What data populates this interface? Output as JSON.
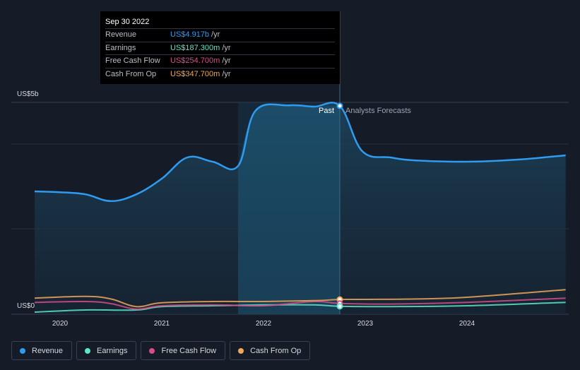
{
  "chart_data": {
    "type": "area",
    "y_axis": {
      "max_label": "US$5b",
      "min_label": "US$0",
      "ylim": [
        0,
        5
      ]
    },
    "x_ticks": [
      "2020",
      "2021",
      "2022",
      "2023",
      "2024"
    ],
    "past_label": "Past",
    "forecast_label": "Analysts Forecasts",
    "divider_x": 2022.75,
    "series": [
      {
        "name": "Revenue",
        "color": "#2e9cf0",
        "points": [
          [
            2019.75,
            2.9
          ],
          [
            2020.0,
            2.88
          ],
          [
            2020.25,
            2.83
          ],
          [
            2020.5,
            2.67
          ],
          [
            2020.75,
            2.83
          ],
          [
            2021.0,
            3.2
          ],
          [
            2021.25,
            3.7
          ],
          [
            2021.5,
            3.6
          ],
          [
            2021.75,
            3.5
          ],
          [
            2021.92,
            4.8
          ],
          [
            2022.25,
            4.93
          ],
          [
            2022.5,
            4.9
          ],
          [
            2022.75,
            4.917
          ]
        ]
      },
      {
        "name": "Revenue forecast",
        "color": "#2e9cf0",
        "points": [
          [
            2022.75,
            4.917
          ],
          [
            2022.97,
            3.85
          ],
          [
            2023.25,
            3.7
          ],
          [
            2023.5,
            3.63
          ],
          [
            2024.0,
            3.6
          ],
          [
            2024.5,
            3.65
          ],
          [
            2024.97,
            3.75
          ]
        ]
      },
      {
        "name": "Earnings",
        "color": "#5ee6c8",
        "points": [
          [
            2019.75,
            0.05
          ],
          [
            2020.25,
            0.1
          ],
          [
            2020.75,
            0.1
          ],
          [
            2021.0,
            0.18
          ],
          [
            2021.5,
            0.2
          ],
          [
            2022.0,
            0.22
          ],
          [
            2022.5,
            0.22
          ],
          [
            2022.75,
            0.187
          ],
          [
            2023.25,
            0.18
          ],
          [
            2024.0,
            0.2
          ],
          [
            2024.97,
            0.28
          ]
        ]
      },
      {
        "name": "Free Cash Flow",
        "color": "#d84c8c",
        "points": [
          [
            2019.75,
            0.28
          ],
          [
            2020.25,
            0.3
          ],
          [
            2020.5,
            0.25
          ],
          [
            2020.75,
            0.12
          ],
          [
            2021.0,
            0.2
          ],
          [
            2021.5,
            0.22
          ],
          [
            2022.0,
            0.2
          ],
          [
            2022.5,
            0.3
          ],
          [
            2022.75,
            0.2547
          ],
          [
            2023.25,
            0.24
          ],
          [
            2024.0,
            0.28
          ],
          [
            2024.97,
            0.38
          ]
        ]
      },
      {
        "name": "Cash From Op",
        "color": "#f0a85a",
        "points": [
          [
            2019.75,
            0.38
          ],
          [
            2020.25,
            0.42
          ],
          [
            2020.5,
            0.36
          ],
          [
            2020.75,
            0.18
          ],
          [
            2021.0,
            0.27
          ],
          [
            2021.5,
            0.3
          ],
          [
            2022.0,
            0.3
          ],
          [
            2022.5,
            0.32
          ],
          [
            2022.75,
            0.3477
          ],
          [
            2023.0,
            0.35
          ],
          [
            2023.5,
            0.36
          ],
          [
            2024.0,
            0.4
          ],
          [
            2024.97,
            0.58
          ]
        ]
      }
    ],
    "tooltip": {
      "date": "Sep 30 2022",
      "rows": [
        {
          "label": "Revenue",
          "value": "US$4.917b",
          "unit": "/yr",
          "color": "#2e9cf0"
        },
        {
          "label": "Earnings",
          "value": "US$187.300m",
          "unit": "/yr",
          "color": "#5ee6c8"
        },
        {
          "label": "Free Cash Flow",
          "value": "US$254.700m",
          "unit": "/yr",
          "color": "#d84c8c"
        },
        {
          "label": "Cash From Op",
          "value": "US$347.700m",
          "unit": "/yr",
          "color": "#f0a85a"
        }
      ]
    },
    "legend": [
      {
        "label": "Revenue",
        "color": "#2e9cf0"
      },
      {
        "label": "Earnings",
        "color": "#5ee6c8"
      },
      {
        "label": "Free Cash Flow",
        "color": "#d84c8c"
      },
      {
        "label": "Cash From Op",
        "color": "#f0a85a"
      }
    ]
  }
}
